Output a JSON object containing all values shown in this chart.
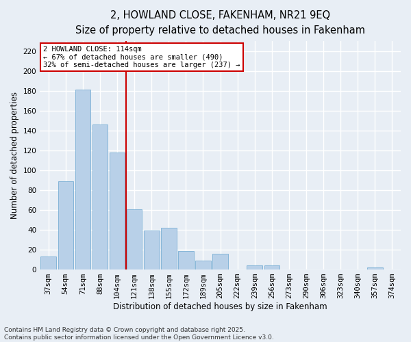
{
  "title": "2, HOWLAND CLOSE, FAKENHAM, NR21 9EQ",
  "subtitle": "Size of property relative to detached houses in Fakenham",
  "xlabel": "Distribution of detached houses by size in Fakenham",
  "ylabel": "Number of detached properties",
  "categories": [
    "37sqm",
    "54sqm",
    "71sqm",
    "88sqm",
    "104sqm",
    "121sqm",
    "138sqm",
    "155sqm",
    "172sqm",
    "189sqm",
    "205sqm",
    "222sqm",
    "239sqm",
    "256sqm",
    "273sqm",
    "290sqm",
    "306sqm",
    "323sqm",
    "340sqm",
    "357sqm",
    "374sqm"
  ],
  "values": [
    13,
    89,
    181,
    146,
    118,
    61,
    39,
    42,
    19,
    9,
    16,
    0,
    4,
    4,
    0,
    0,
    0,
    0,
    0,
    2,
    0
  ],
  "bar_color": "#b8d0e8",
  "bar_edge_color": "#7aafd4",
  "background_color": "#e8eef5",
  "grid_color": "#ffffff",
  "vline_x": 4.5,
  "vline_color": "#cc0000",
  "annotation_text": "2 HOWLAND CLOSE: 114sqm\n← 67% of detached houses are smaller (490)\n32% of semi-detached houses are larger (237) →",
  "annotation_box_color": "#ffffff",
  "annotation_box_edge_color": "#cc0000",
  "ylim": [
    0,
    230
  ],
  "yticks": [
    0,
    20,
    40,
    60,
    80,
    100,
    120,
    140,
    160,
    180,
    200,
    220
  ],
  "footer": "Contains HM Land Registry data © Crown copyright and database right 2025.\nContains public sector information licensed under the Open Government Licence v3.0.",
  "title_fontsize": 10.5,
  "subtitle_fontsize": 9.5,
  "tick_fontsize": 7.5,
  "label_fontsize": 8.5,
  "footer_fontsize": 6.5,
  "annot_fontsize": 7.5
}
